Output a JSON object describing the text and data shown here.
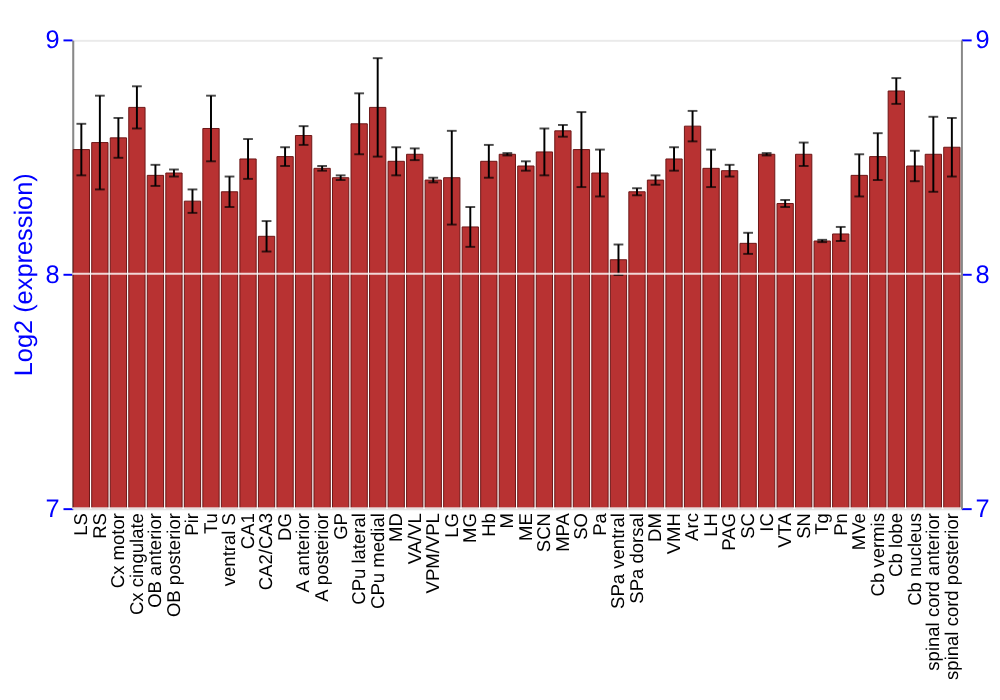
{
  "chart_data": {
    "type": "bar",
    "ylabel": "Log2 (expression)",
    "categories": [
      "LS",
      "RS",
      "Cx motor",
      "Cx cingulate",
      "OB anterior",
      "OB posterior",
      "Pir",
      "Tu",
      "ventral S",
      "CA1",
      "CA2/CA3",
      "DG",
      "A anterior",
      "A posterior",
      "GP",
      "CPu lateral",
      "CPu medial",
      "MD",
      "VA/VL",
      "VPM/VPL",
      "LG",
      "MG",
      "Hb",
      "M",
      "ME",
      "SCN",
      "MPA",
      "SO",
      "Pa",
      "SPa ventral",
      "SPa dorsal",
      "DM",
      "VMH",
      "Arc",
      "LH",
      "PAG",
      "SC",
      "IC",
      "VTA",
      "SN",
      "Tg",
      "Pn",
      "MVe",
      "Cb vermis",
      "Cb lobe",
      "Cb nucleus",
      "spinal cord anterior",
      "spinal cord posterior"
    ],
    "values": [
      8.53,
      8.56,
      8.58,
      8.71,
      8.42,
      8.43,
      8.31,
      8.62,
      8.35,
      8.49,
      8.16,
      8.5,
      8.59,
      8.45,
      8.41,
      8.64,
      8.71,
      8.48,
      8.51,
      8.4,
      8.41,
      8.2,
      8.48,
      8.51,
      8.46,
      8.52,
      8.61,
      8.53,
      8.43,
      8.06,
      8.35,
      8.4,
      8.49,
      8.63,
      8.45,
      8.44,
      8.13,
      8.51,
      8.3,
      8.51,
      8.14,
      8.17,
      8.42,
      8.5,
      8.78,
      8.46,
      8.51,
      8.54
    ],
    "errors": [
      0.11,
      0.2,
      0.085,
      0.09,
      0.045,
      0.015,
      0.05,
      0.14,
      0.065,
      0.085,
      0.065,
      0.04,
      0.04,
      0.01,
      0.01,
      0.13,
      0.21,
      0.06,
      0.025,
      0.01,
      0.2,
      0.085,
      0.07,
      0.005,
      0.02,
      0.1,
      0.025,
      0.16,
      0.1,
      0.065,
      0.015,
      0.02,
      0.05,
      0.065,
      0.08,
      0.025,
      0.045,
      0.005,
      0.015,
      0.05,
      0.005,
      0.03,
      0.09,
      0.1,
      0.055,
      0.065,
      0.16,
      0.125
    ],
    "color": "#b83232",
    "ylim": [
      7,
      9
    ],
    "yticks": [
      7,
      8,
      9
    ],
    "y2lim": [
      7,
      9
    ],
    "y2ticks": [
      7,
      8,
      9
    ],
    "grid": "y"
  }
}
